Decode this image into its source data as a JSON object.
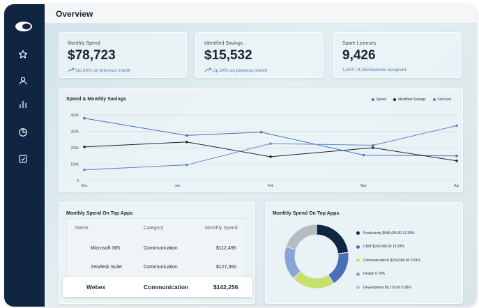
{
  "header": {
    "title": "Overview"
  },
  "sidebar": {
    "items": [
      {
        "icon": "star-icon"
      },
      {
        "icon": "user-icon"
      },
      {
        "icon": "bar-chart-icon"
      },
      {
        "icon": "pie-chart-icon"
      },
      {
        "icon": "checkbox-icon"
      }
    ]
  },
  "stats": [
    {
      "label": "Monthly Spend",
      "value": "$78,723",
      "sub": "Up 24% on previous month"
    },
    {
      "label": "Identified Savings",
      "value": "$15,532",
      "sub": "Up 24% on previous month"
    },
    {
      "label": "Spare Licenses",
      "value": "9,426",
      "sub": "1,824 / 8,358 licenses assigned"
    }
  ],
  "chart_data": [
    {
      "type": "line",
      "title": "Spend & Monthly Savings",
      "categories": [
        "Dec",
        "Jan",
        "Feb",
        "Mar",
        "Apr"
      ],
      "x_positions": [
        0,
        1,
        2,
        3,
        4
      ],
      "yticks": [
        "400K",
        "300K",
        "200K",
        "100K",
        "0"
      ],
      "ylim": [
        0,
        400000
      ],
      "legend_position": "top-right",
      "series": [
        {
          "name": "Spend",
          "color": "#4a6fb5",
          "x": [
            0,
            1.1,
            1.9,
            3.0,
            4.0
          ],
          "values": [
            380000,
            275000,
            295000,
            155000,
            150000
          ]
        },
        {
          "name": "Identified Savings",
          "color": "#1a2433",
          "x": [
            0,
            1.1,
            2.0,
            3.1,
            4.0
          ],
          "values": [
            205000,
            235000,
            145000,
            200000,
            120000
          ]
        },
        {
          "name": "Forecast",
          "color": "#5b86c9",
          "x": [
            0,
            1.1,
            2.0,
            3.1,
            4.0
          ],
          "values": [
            65000,
            95000,
            225000,
            215000,
            335000
          ]
        }
      ]
    },
    {
      "type": "pie",
      "title": "Monthly Spend On Top Apps",
      "slices": [
        {
          "label": "Productivity $946,435.00 13.28%",
          "value": 23,
          "color": "#0f2541"
        },
        {
          "label": "CRM $154,580.00 13.28%",
          "value": 18,
          "color": "#4a6fb5"
        },
        {
          "label": "Communications $154,580.00 3.81%",
          "value": 22,
          "color": "#c8e06a"
        },
        {
          "label": "Design 0.76%",
          "value": 17,
          "color": "#8aa4d6"
        },
        {
          "label": "Development $6,729.00 0.58%",
          "value": 20,
          "color": "#b7bcc2"
        }
      ]
    }
  ],
  "table": {
    "title": "Monthly Spend On Top Apps",
    "columns": [
      "Name",
      "Category",
      "Monthly Spend"
    ],
    "rows": [
      {
        "name": "Microsoft 365",
        "category": "Communication",
        "spend": "$112,496"
      },
      {
        "name": "Zendesk Suite",
        "category": "Communication",
        "spend": "$127,392"
      },
      {
        "name": "Webex",
        "category": "Communication",
        "spend": "$142,256"
      }
    ]
  }
}
